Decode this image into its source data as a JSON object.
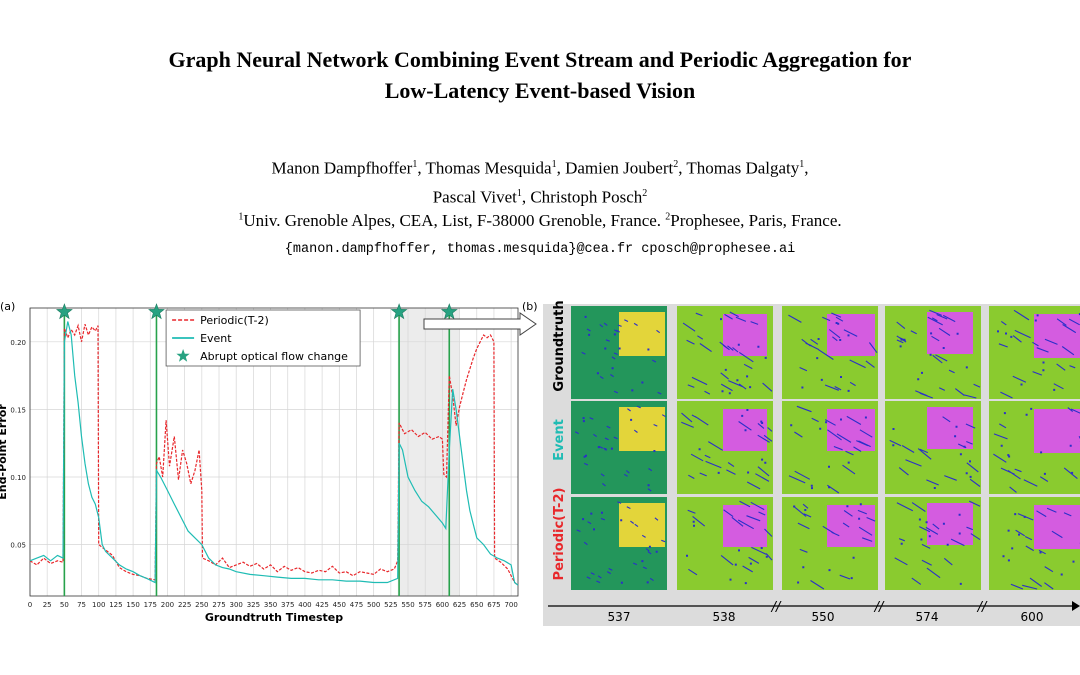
{
  "title_line1": "Graph Neural Network Combining Event Stream and Periodic Aggregation for",
  "title_line2": "Low-Latency Event-based Vision",
  "authors": [
    {
      "name": "Manon Dampfhoffer",
      "aff": "1"
    },
    {
      "name": "Thomas Mesquida",
      "aff": "1"
    },
    {
      "name": "Damien Joubert",
      "aff": "2"
    },
    {
      "name": "Thomas Dalgaty",
      "aff": "1"
    },
    {
      "name": "Pascal Vivet",
      "aff": "1"
    },
    {
      "name": "Christoph Posch",
      "aff": "2"
    }
  ],
  "affiliation1": "Univ. Grenoble Alpes, CEA, List, F-38000 Grenoble, France.",
  "affiliation2": "Prophesee, Paris, France.",
  "emails": "{manon.dampfhoffer, thomas.mesquida}@cea.fr cposch@prophesee.ai",
  "panel_a_label": "(a)",
  "panel_b_label": "(b)",
  "chart_data": {
    "type": "line",
    "xlabel": "Groundtruth Timestep",
    "ylabel": "End-Point Error",
    "xlim": [
      0,
      710
    ],
    "ylim": [
      0.012,
      0.225
    ],
    "xticks": [
      0,
      25,
      50,
      75,
      100,
      125,
      150,
      175,
      200,
      225,
      250,
      275,
      300,
      325,
      350,
      375,
      400,
      425,
      450,
      475,
      500,
      525,
      550,
      575,
      600,
      625,
      650,
      675,
      700
    ],
    "yticks": [
      0.05,
      0.1,
      0.15,
      0.2
    ],
    "grid": true,
    "legend_position": "top-center",
    "shaded_region": [
      535,
      625
    ],
    "events": [
      50,
      184,
      537,
      610
    ],
    "series": [
      {
        "name": "Periodic(T-2)",
        "color": "#e8272b",
        "style": "dashed",
        "points": [
          [
            0,
            0.038
          ],
          [
            10,
            0.035
          ],
          [
            20,
            0.04
          ],
          [
            30,
            0.036
          ],
          [
            40,
            0.038
          ],
          [
            48,
            0.037
          ],
          [
            50,
            0.21
          ],
          [
            55,
            0.203
          ],
          [
            60,
            0.209
          ],
          [
            65,
            0.205
          ],
          [
            70,
            0.212
          ],
          [
            75,
            0.2
          ],
          [
            80,
            0.213
          ],
          [
            85,
            0.205
          ],
          [
            90,
            0.211
          ],
          [
            95,
            0.208
          ],
          [
            99,
            0.212
          ],
          [
            100,
            0.05
          ],
          [
            110,
            0.046
          ],
          [
            120,
            0.042
          ],
          [
            130,
            0.033
          ],
          [
            140,
            0.03
          ],
          [
            150,
            0.028
          ],
          [
            160,
            0.027
          ],
          [
            170,
            0.025
          ],
          [
            182,
            0.024
          ],
          [
            184,
            0.11
          ],
          [
            188,
            0.115
          ],
          [
            193,
            0.1
          ],
          [
            198,
            0.142
          ],
          [
            203,
            0.108
          ],
          [
            210,
            0.13
          ],
          [
            216,
            0.098
          ],
          [
            222,
            0.12
          ],
          [
            228,
            0.11
          ],
          [
            234,
            0.095
          ],
          [
            240,
            0.105
          ],
          [
            246,
            0.12
          ],
          [
            250,
            0.09
          ],
          [
            251,
            0.04
          ],
          [
            260,
            0.038
          ],
          [
            270,
            0.035
          ],
          [
            280,
            0.04
          ],
          [
            290,
            0.033
          ],
          [
            300,
            0.035
          ],
          [
            310,
            0.037
          ],
          [
            320,
            0.034
          ],
          [
            330,
            0.036
          ],
          [
            340,
            0.032
          ],
          [
            350,
            0.035
          ],
          [
            360,
            0.03
          ],
          [
            370,
            0.034
          ],
          [
            380,
            0.031
          ],
          [
            390,
            0.033
          ],
          [
            400,
            0.03
          ],
          [
            410,
            0.029
          ],
          [
            420,
            0.031
          ],
          [
            430,
            0.03
          ],
          [
            440,
            0.034
          ],
          [
            450,
            0.029
          ],
          [
            460,
            0.03
          ],
          [
            470,
            0.027
          ],
          [
            480,
            0.03
          ],
          [
            490,
            0.029
          ],
          [
            500,
            0.028
          ],
          [
            510,
            0.032
          ],
          [
            520,
            0.03
          ],
          [
            530,
            0.032
          ],
          [
            535,
            0.038
          ],
          [
            537,
            0.14
          ],
          [
            545,
            0.132
          ],
          [
            555,
            0.135
          ],
          [
            565,
            0.13
          ],
          [
            575,
            0.133
          ],
          [
            585,
            0.128
          ],
          [
            595,
            0.13
          ],
          [
            600,
            0.128
          ],
          [
            602,
            0.102
          ],
          [
            606,
            0.1
          ],
          [
            610,
            0.175
          ],
          [
            615,
            0.16
          ],
          [
            620,
            0.138
          ],
          [
            625,
            0.152
          ],
          [
            630,
            0.162
          ],
          [
            635,
            0.172
          ],
          [
            640,
            0.18
          ],
          [
            645,
            0.188
          ],
          [
            650,
            0.195
          ],
          [
            655,
            0.2
          ],
          [
            660,
            0.205
          ],
          [
            665,
            0.203
          ],
          [
            670,
            0.205
          ],
          [
            675,
            0.2
          ],
          [
            676,
            0.04
          ],
          [
            685,
            0.037
          ],
          [
            695,
            0.032
          ],
          [
            705,
            0.022
          ],
          [
            710,
            0.02
          ]
        ]
      },
      {
        "name": "Event",
        "color": "#1fbcb4",
        "style": "solid",
        "points": [
          [
            0,
            0.038
          ],
          [
            10,
            0.04
          ],
          [
            20,
            0.042
          ],
          [
            30,
            0.038
          ],
          [
            40,
            0.042
          ],
          [
            48,
            0.04
          ],
          [
            50,
            0.2
          ],
          [
            55,
            0.215
          ],
          [
            60,
            0.205
          ],
          [
            65,
            0.175
          ],
          [
            70,
            0.155
          ],
          [
            75,
            0.13
          ],
          [
            80,
            0.11
          ],
          [
            85,
            0.095
          ],
          [
            90,
            0.085
          ],
          [
            95,
            0.08
          ],
          [
            100,
            0.07
          ],
          [
            105,
            0.05
          ],
          [
            110,
            0.045
          ],
          [
            120,
            0.04
          ],
          [
            130,
            0.035
          ],
          [
            140,
            0.032
          ],
          [
            150,
            0.03
          ],
          [
            160,
            0.027
          ],
          [
            170,
            0.025
          ],
          [
            182,
            0.022
          ],
          [
            184,
            0.105
          ],
          [
            190,
            0.1
          ],
          [
            200,
            0.09
          ],
          [
            210,
            0.08
          ],
          [
            220,
            0.07
          ],
          [
            230,
            0.06
          ],
          [
            240,
            0.055
          ],
          [
            250,
            0.05
          ],
          [
            260,
            0.04
          ],
          [
            270,
            0.035
          ],
          [
            280,
            0.033
          ],
          [
            290,
            0.032
          ],
          [
            300,
            0.03
          ],
          [
            320,
            0.028
          ],
          [
            340,
            0.027
          ],
          [
            360,
            0.026
          ],
          [
            380,
            0.025
          ],
          [
            400,
            0.025
          ],
          [
            420,
            0.024
          ],
          [
            440,
            0.024
          ],
          [
            460,
            0.023
          ],
          [
            480,
            0.023
          ],
          [
            500,
            0.022
          ],
          [
            520,
            0.022
          ],
          [
            535,
            0.025
          ],
          [
            537,
            0.125
          ],
          [
            542,
            0.12
          ],
          [
            550,
            0.1
          ],
          [
            560,
            0.09
          ],
          [
            570,
            0.082
          ],
          [
            580,
            0.078
          ],
          [
            590,
            0.072
          ],
          [
            600,
            0.066
          ],
          [
            605,
            0.062
          ],
          [
            610,
            0.12
          ],
          [
            615,
            0.165
          ],
          [
            620,
            0.15
          ],
          [
            625,
            0.13
          ],
          [
            630,
            0.11
          ],
          [
            635,
            0.09
          ],
          [
            640,
            0.075
          ],
          [
            645,
            0.065
          ],
          [
            650,
            0.055
          ],
          [
            660,
            0.05
          ],
          [
            670,
            0.043
          ],
          [
            680,
            0.04
          ],
          [
            690,
            0.038
          ],
          [
            700,
            0.035
          ],
          [
            705,
            0.022
          ],
          [
            710,
            0.02
          ]
        ]
      }
    ],
    "event_series_name": "Abrupt optical flow change"
  },
  "panel_b": {
    "rows": [
      "Groundtruth",
      "Event",
      "Periodic(T-2)"
    ],
    "row_colors": [
      "#000000",
      "#1fbcb4",
      "#e8272b"
    ],
    "columns": [
      "537",
      "538",
      "550",
      "574",
      "600"
    ],
    "break_marks": [
      "//",
      "//",
      "//"
    ]
  }
}
